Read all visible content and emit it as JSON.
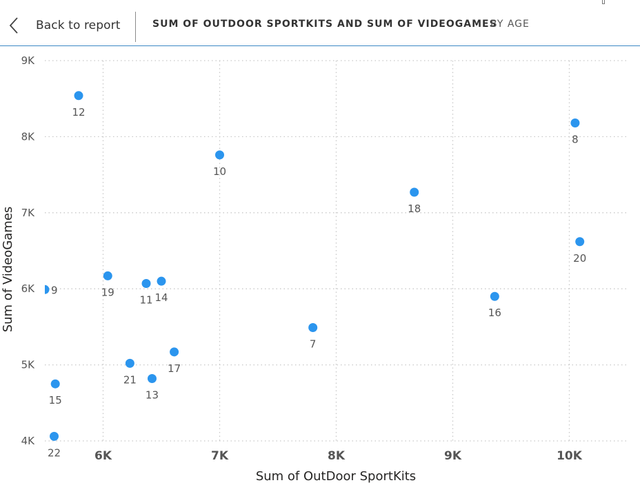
{
  "header": {
    "back_label": "Back to report",
    "title": "SUM OF OUTDOOR SPORTKITS AND SUM OF VIDEOGAMES",
    "subtitle": "BY AGE"
  },
  "icons": {
    "back": "chevron-left-icon"
  },
  "colors": {
    "marker": "#2b95ee",
    "gridline": "#c8c8c8",
    "header_border": "#3a87c4"
  },
  "chart_data": {
    "type": "scatter",
    "xlabel": "Sum of OutDoor SportKits",
    "ylabel": "Sum of VideoGames",
    "xlim": [
      5500,
      10500
    ],
    "ylim": [
      4000,
      9000
    ],
    "x_ticks": [
      6000,
      7000,
      8000,
      9000,
      10000
    ],
    "x_tick_labels": [
      "6K",
      "7K",
      "8K",
      "9K",
      "10K"
    ],
    "y_ticks": [
      4000,
      5000,
      6000,
      7000,
      8000,
      9000
    ],
    "y_tick_labels": [
      "4K",
      "5K",
      "6K",
      "7K",
      "8K",
      "9K"
    ],
    "grid": true,
    "points": [
      {
        "label": "12",
        "x": 5790,
        "y": 8540
      },
      {
        "label": "10",
        "x": 7000,
        "y": 7760
      },
      {
        "label": "8",
        "x": 10050,
        "y": 8180
      },
      {
        "label": "18",
        "x": 8670,
        "y": 7270
      },
      {
        "label": "20",
        "x": 10090,
        "y": 6620
      },
      {
        "label": "9",
        "x": 5500,
        "y": 5990
      },
      {
        "label": "19",
        "x": 6040,
        "y": 6170
      },
      {
        "label": "11",
        "x": 6370,
        "y": 6070
      },
      {
        "label": "14",
        "x": 6500,
        "y": 6100
      },
      {
        "label": "16",
        "x": 9360,
        "y": 5900
      },
      {
        "label": "7",
        "x": 7800,
        "y": 5490
      },
      {
        "label": "17",
        "x": 6610,
        "y": 5170
      },
      {
        "label": "21",
        "x": 6230,
        "y": 5020
      },
      {
        "label": "13",
        "x": 6420,
        "y": 4820
      },
      {
        "label": "15",
        "x": 5590,
        "y": 4750
      },
      {
        "label": "22",
        "x": 5580,
        "y": 4060
      }
    ]
  }
}
